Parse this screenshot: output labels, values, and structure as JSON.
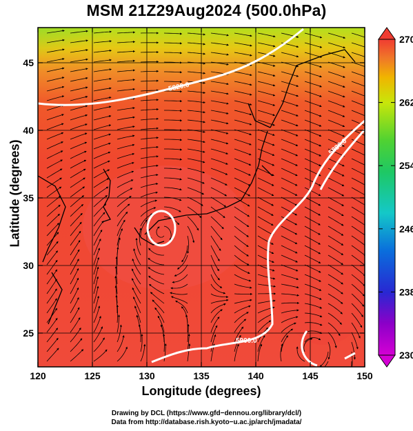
{
  "title": "MSM 21Z29Aug2024 (500.0hPa)",
  "xaxis": {
    "label": "Longitude (degrees)",
    "ticks": [
      120,
      125,
      130,
      135,
      140,
      145,
      150
    ],
    "range": [
      120,
      150
    ]
  },
  "yaxis": {
    "label": "Latitude  (degrees)",
    "ticks": [
      25,
      30,
      35,
      40,
      45
    ],
    "range": [
      22.5,
      47.6
    ]
  },
  "colorbar": {
    "ticks": [
      270,
      262,
      254,
      246,
      238,
      230
    ],
    "range": [
      230,
      270
    ],
    "colors": [
      "#d400d4",
      "#8c00c8",
      "#2828d2",
      "#0a6edc",
      "#14c8c8",
      "#1ec864",
      "#50d232",
      "#c8e60a",
      "#f0b400",
      "#f07828",
      "#f03c32"
    ]
  },
  "contours": [
    {
      "label": "5820.0",
      "color": "#ffffff"
    },
    {
      "label": "5880.0",
      "color": "#ffffff"
    },
    {
      "label": "5900.0",
      "color": "#ffffff"
    }
  ],
  "credits": {
    "line1": "Drawing by DCL (https://www.gfd−dennou.org/library/dcl/)",
    "line2": "Data from http://database.rish.kyoto−u.ac.jp/arch/jmadata/"
  }
}
